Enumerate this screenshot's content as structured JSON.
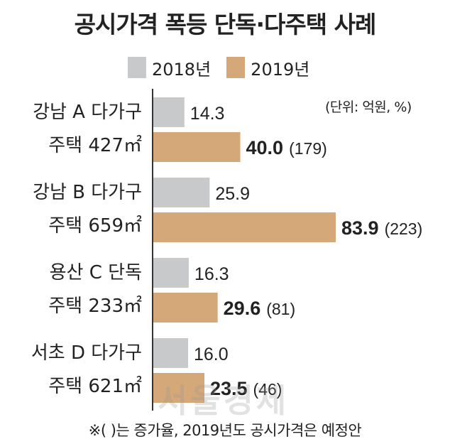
{
  "chart_data": {
    "type": "bar",
    "orientation": "horizontal",
    "title": "공시가격 폭등 단독·다주택 사례",
    "unit": "(단위: 억원, %)",
    "categories": [
      [
        "강남 A 다가구",
        "주택 427㎡"
      ],
      [
        "강남 B 다가구",
        "주택 659㎡"
      ],
      [
        "용산 C 단독",
        "주택 233㎡"
      ],
      [
        "서초 D 다가구",
        "주택 621㎡"
      ]
    ],
    "series": [
      {
        "name": "2018년",
        "color": "#c8c9cb",
        "values": [
          14.3,
          25.9,
          16.3,
          16.0
        ],
        "labels": [
          "14.3",
          "25.9",
          "16.3",
          "16.0"
        ]
      },
      {
        "name": "2019년",
        "color": "#d4a878",
        "values": [
          40.0,
          83.9,
          29.6,
          23.5
        ],
        "labels": [
          "40.0",
          "83.9",
          "29.6",
          "23.5"
        ],
        "increase_labels": [
          "(179)",
          "(223)",
          "(81)",
          "(46)"
        ]
      }
    ],
    "note": "※(   )는 증가율, 2019년도 공시가격은 예정안",
    "legend_position": "top",
    "grid": false
  },
  "watermark": "서울경제"
}
